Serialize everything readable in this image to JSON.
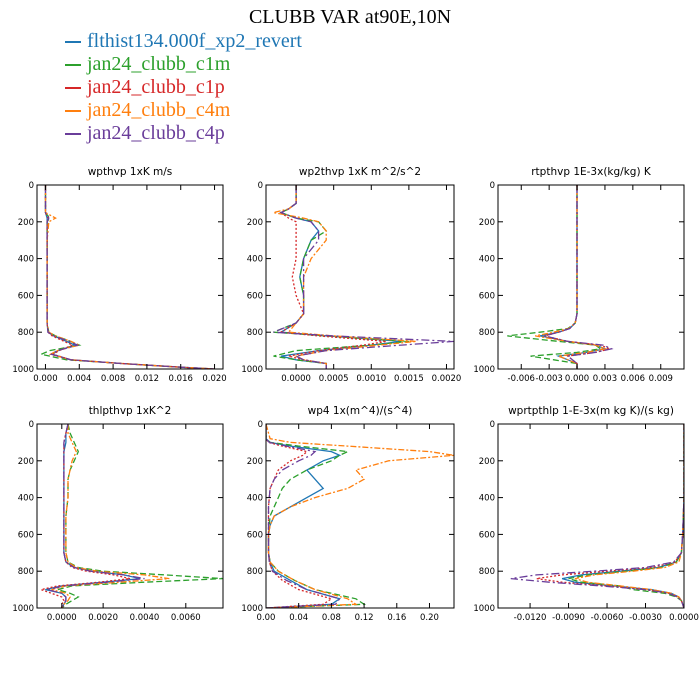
{
  "title": "CLUBB VAR at90E,10N",
  "legend": [
    {
      "label": "flthist134.000f_xp2_revert",
      "color": "#1f77b4"
    },
    {
      "label": "jan24_clubb_c1m",
      "color": "#2ca02c"
    },
    {
      "label": "jan24_clubb_c1p",
      "color": "#d62728"
    },
    {
      "label": "jan24_clubb_c4m",
      "color": "#ff7f0e"
    },
    {
      "label": "jan24_clubb_c4p",
      "color": "#6a3d9a"
    }
  ],
  "chart_data": [
    {
      "type": "line",
      "title": "wpthvp   1xK m/s",
      "xlim": [
        -0.001,
        0.021
      ],
      "ylim": [
        1000,
        0
      ],
      "xticks": [
        0.0,
        0.004,
        0.008,
        0.012,
        0.016,
        0.02
      ],
      "xtick_labels": [
        "0.000",
        "0.004",
        "0.008",
        "0.012",
        "0.016",
        "0.020"
      ],
      "yticks": [
        0,
        200,
        400,
        600,
        800,
        1000
      ],
      "y": [
        0,
        100,
        150,
        180,
        200,
        250,
        300,
        400,
        500,
        600,
        700,
        750,
        800,
        820,
        850,
        870,
        900,
        920,
        950,
        970,
        990,
        1000
      ],
      "series": [
        {
          "values": [
            0.0,
            0.0,
            0.0,
            0.0002,
            0.0002,
            0.0002,
            0.0002,
            0.0002,
            0.0002,
            0.0002,
            0.0002,
            0.0002,
            0.0003,
            0.001,
            0.0025,
            0.0035,
            0.0015,
            0.0008,
            0.003,
            0.009,
            0.016,
            0.02
          ]
        },
        {
          "values": [
            0.0,
            0.0,
            0.0,
            0.0005,
            0.0002,
            0.0002,
            0.0002,
            0.0002,
            0.0002,
            0.0002,
            0.0002,
            0.0002,
            0.0004,
            0.0012,
            0.003,
            0.004,
            0.0005,
            -0.0005,
            0.0025,
            0.009,
            0.016,
            0.02
          ]
        },
        {
          "values": [
            0.0,
            0.0,
            0.0,
            0.0003,
            0.0002,
            0.0002,
            0.0002,
            0.0002,
            0.0002,
            0.0002,
            0.0002,
            0.0002,
            0.0003,
            0.0008,
            0.0022,
            0.0032,
            0.0016,
            0.0009,
            0.003,
            0.009,
            0.016,
            0.02
          ]
        },
        {
          "values": [
            0.0,
            0.0,
            0.0,
            0.0012,
            0.0004,
            0.0003,
            0.0002,
            0.0002,
            0.0002,
            0.0002,
            0.0002,
            0.0002,
            0.0004,
            0.0012,
            0.003,
            0.004,
            0.0014,
            0.0006,
            0.003,
            0.009,
            0.016,
            0.02
          ]
        },
        {
          "values": [
            0.0,
            0.0,
            0.0,
            0.0004,
            0.0002,
            0.0002,
            0.0002,
            0.0002,
            0.0002,
            0.0002,
            0.0002,
            0.0002,
            0.0003,
            0.001,
            0.0028,
            0.0038,
            0.0014,
            0.0007,
            0.003,
            0.009,
            0.016,
            0.02
          ]
        }
      ]
    },
    {
      "type": "line",
      "title": "wp2thvp   1xK m^2/s^2",
      "xlim": [
        -0.0004,
        0.0021
      ],
      "ylim": [
        1000,
        0
      ],
      "xticks": [
        0.0,
        0.0005,
        0.001,
        0.0015,
        0.002
      ],
      "xtick_labels": [
        "0.0000",
        "0.0005",
        "0.0010",
        "0.0015",
        "0.0020"
      ],
      "yticks": [
        0,
        200,
        400,
        600,
        800,
        1000
      ],
      "y": [
        0,
        100,
        130,
        150,
        180,
        200,
        250,
        300,
        400,
        500,
        600,
        700,
        750,
        800,
        820,
        850,
        870,
        900,
        930,
        950,
        970,
        1000
      ],
      "series": [
        {
          "values": [
            0.0,
            0.0,
            -0.0001,
            -0.0002,
            0.0,
            0.0002,
            0.0003,
            0.0002,
            0.0001,
            5e-05,
            0.0001,
            0.0001,
            0.0,
            -0.0002,
            0.0004,
            0.0014,
            0.001,
            0.0003,
            -0.0002,
            0.0,
            0.0004,
            0.0004
          ]
        },
        {
          "values": [
            0.0,
            0.0,
            -0.0001,
            -0.0002,
            0.0,
            0.0003,
            0.0004,
            0.0002,
            0.0001,
            5e-05,
            0.0001,
            0.0001,
            0.0,
            -0.0003,
            0.0004,
            0.0015,
            0.001,
            0.0,
            -0.0003,
            0.0,
            0.0004,
            0.0004
          ]
        },
        {
          "values": [
            0.0,
            0.0,
            -0.0001,
            -0.0002,
            -0.0001,
            0.0,
            0.0,
            0.0,
            0.0,
            -5e-05,
            0.0,
            0.0001,
            0.0,
            -0.0002,
            0.0003,
            0.0012,
            0.0009,
            0.0003,
            -0.0001,
            0.0001,
            0.0004,
            0.0004
          ]
        },
        {
          "values": [
            0.0,
            0.0,
            -0.0001,
            -0.0003,
            0.0001,
            0.0003,
            0.0004,
            0.0004,
            0.0002,
            0.0001,
            0.0001,
            0.0001,
            0.0,
            -0.0001,
            0.0005,
            0.0016,
            0.0011,
            0.0004,
            0.0,
            0.0001,
            0.0004,
            0.0004
          ]
        },
        {
          "values": [
            0.0,
            0.0,
            -0.0001,
            -0.0002,
            0.0,
            0.0002,
            0.0003,
            0.0003,
            0.0001,
            0.0001,
            0.0001,
            0.0001,
            0.0,
            -0.0003,
            0.0005,
            0.0021,
            0.0014,
            0.0004,
            0.0,
            0.0001,
            0.0004,
            0.0004
          ]
        }
      ]
    },
    {
      "type": "line",
      "title": "rtpthvp   1E-3x(kg/kg) K",
      "xlim": [
        -0.0085,
        0.0115
      ],
      "ylim": [
        1000,
        0
      ],
      "xticks": [
        -0.006,
        -0.003,
        0.0,
        0.003,
        0.006,
        0.009
      ],
      "xtick_labels": [
        "-0.006",
        "-0.003",
        "0.000",
        "0.003",
        "0.006",
        "0.009"
      ],
      "yticks": [
        0,
        200,
        400,
        600,
        800,
        1000
      ],
      "y": [
        0,
        200,
        400,
        600,
        700,
        750,
        780,
        800,
        820,
        850,
        870,
        890,
        910,
        930,
        950,
        970,
        990,
        1000
      ],
      "series": [
        {
          "values": [
            0.0,
            0.0,
            0.0,
            0.0,
            0.0,
            -0.0002,
            -0.0008,
            -0.002,
            -0.004,
            -0.001,
            0.002,
            0.003,
            0.001,
            -0.002,
            -0.001,
            0.0,
            0.0,
            0.0
          ]
        },
        {
          "values": [
            0.0,
            0.0,
            0.0,
            0.0,
            0.0,
            -0.0002,
            -0.001,
            -0.004,
            -0.0075,
            -0.002,
            0.002,
            0.0025,
            0.0,
            -0.005,
            -0.0025,
            0.0,
            0.0,
            0.0
          ]
        },
        {
          "values": [
            0.0,
            0.0,
            0.0,
            0.0,
            0.0,
            -0.0002,
            -0.0008,
            -0.002,
            -0.0035,
            -0.001,
            0.0025,
            0.0035,
            0.002,
            -0.001,
            -0.0005,
            0.0,
            0.0,
            0.0
          ]
        },
        {
          "values": [
            0.0,
            0.0,
            0.0,
            0.0,
            0.0,
            -0.0002,
            -0.0009,
            -0.0025,
            -0.0045,
            -0.001,
            0.002,
            0.003,
            0.001,
            -0.002,
            -0.001,
            0.0,
            0.0,
            0.0
          ]
        },
        {
          "values": [
            0.0,
            0.0,
            0.0,
            0.0,
            0.0,
            -0.0002,
            -0.0008,
            -0.002,
            -0.0035,
            -0.001,
            0.0028,
            0.0037,
            0.002,
            -0.001,
            -0.0005,
            0.0,
            0.0,
            0.0
          ]
        }
      ]
    },
    {
      "type": "line",
      "title": "thlpthvp   1xK^2",
      "xlim": [
        -0.0012,
        0.0078
      ],
      "ylim": [
        1000,
        0
      ],
      "xticks": [
        0.0,
        0.002,
        0.004,
        0.006
      ],
      "xtick_labels": [
        "0.0000",
        "0.0020",
        "0.0040",
        "0.0060"
      ],
      "yticks": [
        0,
        200,
        400,
        600,
        800,
        1000
      ],
      "y": [
        0,
        50,
        100,
        150,
        200,
        250,
        300,
        400,
        500,
        600,
        700,
        750,
        780,
        800,
        820,
        840,
        860,
        880,
        900,
        920,
        940,
        960,
        980,
        1000
      ],
      "series": [
        {
          "values": [
            0.0003,
            0.0002,
            0.0002,
            0.0001,
            0.0001,
            0.0001,
            0.0001,
            0.0001,
            0.0001,
            0.0001,
            0.0001,
            0.0002,
            0.0006,
            0.0015,
            0.003,
            0.0038,
            0.002,
            0.0,
            -0.0008,
            0.0,
            0.0002,
            0.0002,
            0.0001,
            0.0
          ]
        },
        {
          "values": [
            0.0003,
            0.0004,
            0.0006,
            0.0008,
            0.0006,
            0.0004,
            0.0003,
            0.0003,
            0.0002,
            0.0002,
            0.0002,
            0.0003,
            0.0008,
            0.002,
            0.005,
            0.0078,
            0.004,
            0.0005,
            -0.0002,
            0.0004,
            0.0008,
            0.0005,
            0.0002,
            0.0
          ]
        },
        {
          "values": [
            0.0003,
            0.0002,
            0.0001,
            0.0001,
            0.0001,
            0.0001,
            0.0001,
            0.0001,
            0.0001,
            0.0001,
            0.0001,
            0.0002,
            0.0005,
            0.0012,
            0.0025,
            0.0033,
            0.0018,
            -0.0002,
            -0.001,
            -0.0005,
            0.0,
            0.0001,
            0.0,
            0.0
          ]
        },
        {
          "values": [
            0.0003,
            0.0003,
            0.0005,
            0.0007,
            0.0005,
            0.0004,
            0.0003,
            0.0003,
            0.0002,
            0.0002,
            0.0002,
            0.0003,
            0.0007,
            0.0017,
            0.004,
            0.0052,
            0.0028,
            0.0002,
            -0.0005,
            0.0002,
            0.0004,
            0.0003,
            0.0001,
            0.0
          ]
        },
        {
          "values": [
            0.0003,
            0.0002,
            0.0001,
            0.0001,
            0.0001,
            0.0001,
            0.0001,
            0.0001,
            0.0001,
            0.0001,
            0.0001,
            0.0002,
            0.0006,
            0.0014,
            0.003,
            0.004,
            0.0022,
            0.0001,
            -0.0007,
            0.0,
            0.0002,
            0.0002,
            0.0001,
            0.0
          ]
        }
      ]
    },
    {
      "type": "line",
      "title": "wp4   1x(m^4)/(s^4)",
      "xlim": [
        0.0,
        0.23
      ],
      "ylim": [
        1000,
        0
      ],
      "xticks": [
        0.0,
        0.04,
        0.08,
        0.12,
        0.16,
        0.2
      ],
      "xtick_labels": [
        "0.00",
        "0.04",
        "0.08",
        "0.12",
        "0.16",
        "0.20"
      ],
      "yticks": [
        0,
        200,
        400,
        600,
        800,
        1000
      ],
      "y": [
        0,
        80,
        100,
        120,
        150,
        170,
        200,
        250,
        300,
        350,
        400,
        450,
        500,
        550,
        600,
        700,
        750,
        800,
        850,
        900,
        950,
        980,
        1000
      ],
      "series": [
        {
          "values": [
            0.0,
            0.0,
            0.005,
            0.03,
            0.08,
            0.09,
            0.07,
            0.05,
            0.06,
            0.07,
            0.05,
            0.03,
            0.01,
            0.005,
            0.003,
            0.003,
            0.005,
            0.01,
            0.03,
            0.05,
            0.09,
            0.08,
            0.0
          ]
        },
        {
          "values": [
            0.0,
            0.0,
            0.005,
            0.04,
            0.1,
            0.09,
            0.08,
            0.05,
            0.03,
            0.02,
            0.015,
            0.01,
            0.005,
            0.004,
            0.003,
            0.003,
            0.005,
            0.015,
            0.035,
            0.06,
            0.11,
            0.12,
            0.0
          ]
        },
        {
          "values": [
            0.0,
            0.0,
            0.003,
            0.02,
            0.05,
            0.045,
            0.03,
            0.015,
            0.01,
            0.005,
            0.004,
            0.003,
            0.003,
            0.003,
            0.003,
            0.003,
            0.004,
            0.008,
            0.02,
            0.04,
            0.08,
            0.07,
            0.0
          ]
        },
        {
          "values": [
            0.0,
            0.005,
            0.03,
            0.1,
            0.2,
            0.23,
            0.15,
            0.11,
            0.12,
            0.1,
            0.06,
            0.03,
            0.01,
            0.005,
            0.003,
            0.003,
            0.005,
            0.015,
            0.035,
            0.06,
            0.1,
            0.11,
            0.0
          ]
        },
        {
          "values": [
            0.0,
            0.0,
            0.004,
            0.025,
            0.06,
            0.055,
            0.04,
            0.02,
            0.01,
            0.005,
            0.004,
            0.003,
            0.003,
            0.003,
            0.003,
            0.003,
            0.004,
            0.008,
            0.025,
            0.05,
            0.09,
            0.085,
            0.0
          ]
        }
      ]
    },
    {
      "type": "line",
      "title": "wprtpthlp   1-E-3x(m kg K)/(s kg)",
      "xlim": [
        -0.0145,
        0.0
      ],
      "ylim": [
        1000,
        0
      ],
      "xticks": [
        -0.012,
        -0.009,
        -0.006,
        -0.003,
        0.0
      ],
      "xtick_labels": [
        "-0.0120",
        "-0.0090",
        "-0.0060",
        "-0.0030",
        "0.0000"
      ],
      "yticks": [
        0,
        200,
        400,
        600,
        800,
        1000
      ],
      "y": [
        0,
        200,
        400,
        600,
        700,
        750,
        780,
        800,
        820,
        840,
        860,
        880,
        900,
        920,
        940,
        960,
        980,
        1000
      ],
      "series": [
        {
          "values": [
            0.0,
            0.0,
            0.0,
            -0.0001,
            -0.0002,
            -0.0006,
            -0.002,
            -0.005,
            -0.008,
            -0.0095,
            -0.0085,
            -0.0055,
            -0.0025,
            -0.001,
            -0.0004,
            -0.0002,
            -0.0001,
            0.0
          ]
        },
        {
          "values": [
            0.0,
            0.0,
            0.0,
            -0.0001,
            -0.0002,
            -0.0006,
            -0.0018,
            -0.0045,
            -0.0075,
            -0.009,
            -0.008,
            -0.005,
            -0.004,
            -0.0015,
            -0.0006,
            -0.0002,
            -0.0001,
            0.0
          ]
        },
        {
          "values": [
            0.0,
            0.0,
            0.0,
            -0.0001,
            -0.0002,
            -0.0007,
            -0.0025,
            -0.006,
            -0.0095,
            -0.0115,
            -0.0095,
            -0.006,
            -0.003,
            -0.0012,
            -0.0005,
            -0.0002,
            -0.0001,
            0.0
          ]
        },
        {
          "values": [
            0.0,
            0.0,
            0.0,
            -0.0001,
            -0.0002,
            -0.0004,
            -0.0015,
            -0.004,
            -0.007,
            -0.0085,
            -0.0075,
            -0.005,
            -0.0025,
            -0.001,
            -0.0004,
            -0.0002,
            -0.0001,
            0.0
          ]
        },
        {
          "values": [
            0.0,
            0.0,
            0.0,
            -0.0001,
            -0.0002,
            -0.0008,
            -0.003,
            -0.007,
            -0.0115,
            -0.0135,
            -0.0105,
            -0.0065,
            -0.003,
            -0.0012,
            -0.0005,
            -0.0002,
            -0.0001,
            0.0
          ]
        }
      ]
    }
  ]
}
